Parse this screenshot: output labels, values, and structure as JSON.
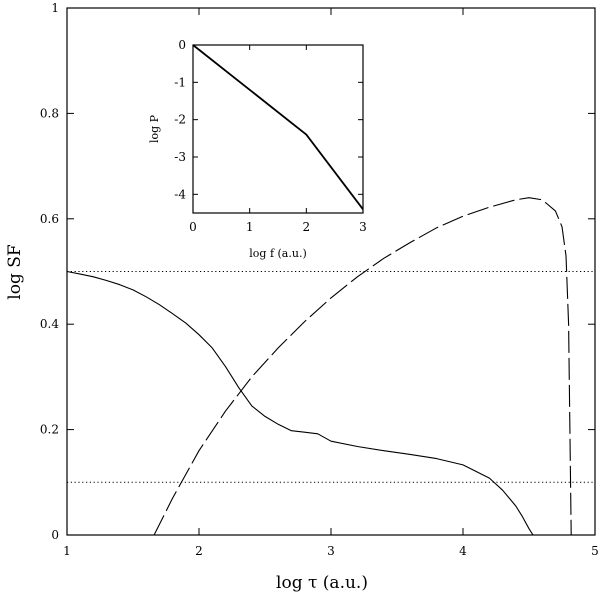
{
  "chart_data": [
    {
      "type": "line",
      "xlabel": "log  τ (a.u.)",
      "ylabel": "log SF",
      "xlim": [
        1,
        5
      ],
      "ylim": [
        0,
        1
      ],
      "xticks": [
        "1",
        "2",
        "3",
        "4",
        "5"
      ],
      "yticks": [
        "0",
        "0.2",
        "0.4",
        "0.6",
        "0.8",
        "1"
      ],
      "grid": false,
      "series": [
        {
          "style": "solid",
          "x": [
            1.0,
            1.1,
            1.2,
            1.3,
            1.4,
            1.5,
            1.6,
            1.7,
            1.8,
            1.9,
            2.0,
            2.1,
            2.2,
            2.3,
            2.4,
            2.5,
            2.6,
            2.7,
            2.8,
            2.9,
            3.0,
            3.2,
            3.4,
            3.6,
            3.8,
            4.0,
            4.2,
            4.3,
            4.4,
            4.45,
            4.5,
            4.53
          ],
          "y": [
            0.5,
            0.495,
            0.49,
            0.483,
            0.475,
            0.465,
            0.452,
            0.437,
            0.42,
            0.402,
            0.38,
            0.355,
            0.32,
            0.28,
            0.245,
            0.225,
            0.21,
            0.198,
            0.195,
            0.192,
            0.178,
            0.168,
            0.16,
            0.153,
            0.145,
            0.133,
            0.108,
            0.085,
            0.055,
            0.035,
            0.012,
            0.0
          ]
        },
        {
          "style": "dashed",
          "x": [
            1.66,
            1.8,
            2.0,
            2.2,
            2.4,
            2.6,
            2.8,
            3.0,
            3.2,
            3.4,
            3.6,
            3.8,
            4.0,
            4.2,
            4.4,
            4.5,
            4.6,
            4.7,
            4.75,
            4.78,
            4.8,
            4.81,
            4.82
          ],
          "y": [
            0.0,
            0.07,
            0.16,
            0.235,
            0.3,
            0.355,
            0.405,
            0.45,
            0.49,
            0.525,
            0.555,
            0.583,
            0.605,
            0.622,
            0.636,
            0.64,
            0.636,
            0.615,
            0.585,
            0.53,
            0.4,
            0.2,
            0.0
          ]
        },
        {
          "style": "dotted",
          "x": [
            1,
            5
          ],
          "y": [
            0.5,
            0.5
          ]
        },
        {
          "style": "dotted",
          "x": [
            1,
            5
          ],
          "y": [
            0.1,
            0.1
          ]
        }
      ]
    },
    {
      "type": "line",
      "xlabel": "log  f (a.u.)",
      "ylabel": "log  P",
      "xlim": [
        0,
        3
      ],
      "ylim": [
        -4.5,
        0
      ],
      "xticks": [
        "0",
        "1",
        "2",
        "3"
      ],
      "yticks": [
        "0",
        "-1",
        "-2",
        "-3",
        "-4"
      ],
      "grid": false,
      "series": [
        {
          "style": "solid",
          "x": [
            0,
            1,
            2,
            3
          ],
          "y": [
            0,
            -1.2,
            -2.4,
            -4.4
          ]
        }
      ]
    }
  ]
}
